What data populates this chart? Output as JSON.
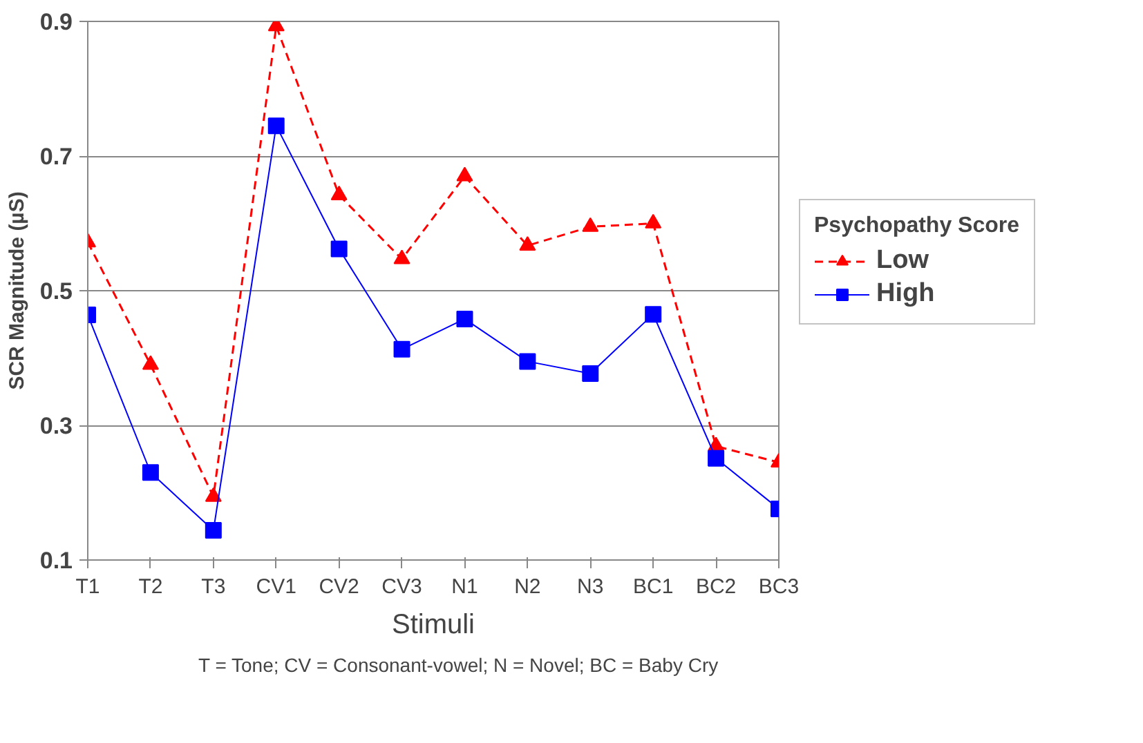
{
  "chart_data": {
    "type": "line",
    "xlabel": "Stimuli",
    "ylabel": "SCR Magnitude (µS)",
    "legend_title": "Psychopathy Score",
    "annotations": [
      "T = Tone; CV = Consonant-vowel; N = Novel; BC = Baby Cry"
    ],
    "categories": [
      "T1",
      "T2",
      "T3",
      "CV1",
      "CV2",
      "CV3",
      "N1",
      "N2",
      "N3",
      "BC1",
      "BC2",
      "BC3"
    ],
    "series": [
      {
        "name": "Low",
        "color": "#ff0000",
        "marker": "triangle",
        "line_style": "dashed",
        "values": [
          0.572,
          0.39,
          0.194,
          0.893,
          0.642,
          0.547,
          0.67,
          0.567,
          0.595,
          0.6,
          0.269,
          0.245
        ]
      },
      {
        "name": "High",
        "color": "#0000ff",
        "marker": "square",
        "line_style": "solid",
        "values": [
          0.464,
          0.23,
          0.144,
          0.745,
          0.562,
          0.413,
          0.458,
          0.395,
          0.377,
          0.465,
          0.251,
          0.176
        ]
      }
    ],
    "ylim": [
      0.1,
      0.9
    ],
    "yticks": [
      0.1,
      0.3,
      0.5,
      0.7,
      0.9
    ],
    "grid": "y",
    "legend": "right"
  }
}
